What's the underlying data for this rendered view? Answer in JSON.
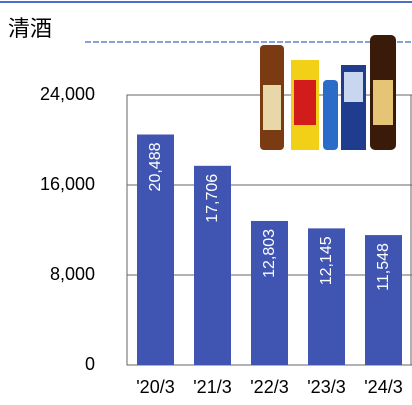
{
  "chart_data": {
    "type": "bar",
    "title": "清酒",
    "categories": [
      "'20/3",
      "'21/3",
      "'22/3",
      "'23/3",
      "'24/3"
    ],
    "values": [
      20488,
      17706,
      12803,
      12145,
      11548
    ],
    "value_labels": [
      "20,488",
      "17,706",
      "12,803",
      "12,145",
      "11,548"
    ],
    "color": "#4054b2",
    "ylim": [
      0,
      24000
    ],
    "yticks": [
      0,
      {
        "value": 8000,
        "label": "8,000"
      },
      {
        "value": 16000,
        "label": "16,000"
      },
      {
        "value": 24000,
        "label": "24,000"
      }
    ],
    "grid": true
  }
}
